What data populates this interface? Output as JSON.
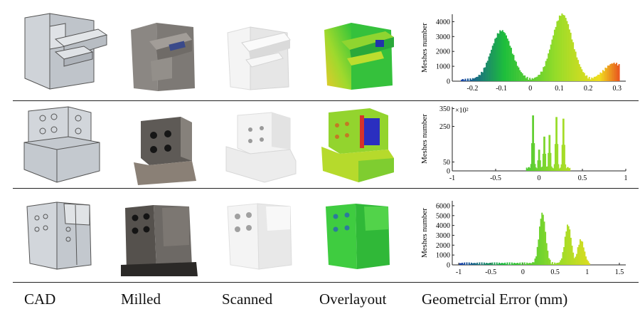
{
  "captions": {
    "cad": "CAD",
    "milled": "Milled",
    "scanned": "Scanned",
    "overlay": "Overlayout",
    "error": "Geometrcial Error (mm)"
  },
  "colors": {
    "cad_fill": "#c9cdd3",
    "cad_edge": "#55585e",
    "concrete": "#8a8682",
    "scan_white": "#f2f2f2",
    "overlay_green": "#36c23a",
    "overlay_yellow": "#d7e12c"
  },
  "chart_data": [
    {
      "type": "histogram",
      "ylabel": "Meshes number",
      "xticks": [
        "-0.2",
        "-0.1",
        "0",
        "0.1",
        "0.2",
        "0.3"
      ],
      "xtick_values": [
        -0.2,
        -0.1,
        0,
        0.1,
        0.2,
        0.3
      ],
      "yticks": [
        "0",
        "1000",
        "2000",
        "3000",
        "4000"
      ],
      "ytick_values": [
        0,
        1000,
        2000,
        3000,
        4000
      ],
      "xlim": [
        -0.27,
        0.33
      ],
      "ylim": [
        0,
        4500
      ],
      "peaks": [
        {
          "x": -0.1,
          "y": 3300
        },
        {
          "x": 0.11,
          "y": 4400
        },
        {
          "x": 0.29,
          "y": 1100
        }
      ]
    },
    {
      "type": "histogram",
      "ylabel": "Meshes number",
      "y_multiplier": "×10²",
      "xticks": [
        "-1",
        "-0.5",
        "0",
        "0.5",
        "1"
      ],
      "xtick_values": [
        -1,
        -0.5,
        0,
        0.5,
        1
      ],
      "yticks": [
        "0",
        "50",
        "250",
        "350"
      ],
      "ytick_values": [
        0,
        50,
        250,
        350
      ],
      "xlim": [
        -1,
        1
      ],
      "ylim": [
        0,
        360
      ],
      "bars": [
        {
          "x": -0.07,
          "y": 340
        },
        {
          "x": 0.0,
          "y": 130
        },
        {
          "x": 0.06,
          "y": 210
        },
        {
          "x": 0.12,
          "y": 220
        },
        {
          "x": 0.2,
          "y": 330
        },
        {
          "x": 0.28,
          "y": 320
        }
      ]
    },
    {
      "type": "histogram",
      "ylabel": "Meshes number",
      "xticks": [
        "-1",
        "-0.5",
        "0",
        "0.5",
        "1",
        "1.5"
      ],
      "xtick_values": [
        -1,
        -0.5,
        0,
        0.5,
        1,
        1.5
      ],
      "yticks": [
        "0",
        "1000",
        "2000",
        "3000",
        "4000",
        "5000",
        "6000"
      ],
      "ytick_values": [
        0,
        1000,
        2000,
        3000,
        4000,
        5000,
        6000
      ],
      "xlim": [
        -1.1,
        1.6
      ],
      "ylim": [
        0,
        6500
      ],
      "peaks": [
        {
          "x": 0.3,
          "y": 5100
        },
        {
          "x": 0.7,
          "y": 3900
        },
        {
          "x": 0.9,
          "y": 2400
        }
      ]
    }
  ]
}
